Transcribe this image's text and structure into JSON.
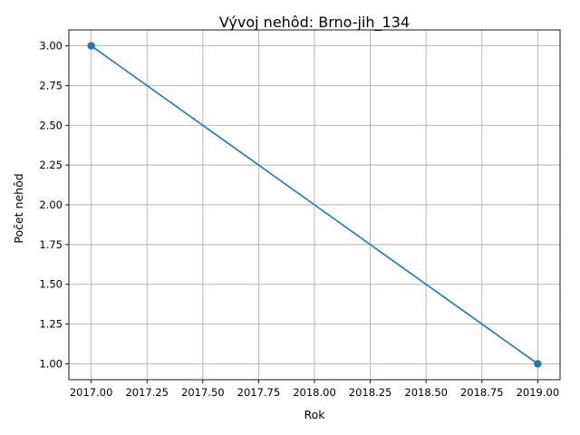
{
  "chart_data": {
    "type": "line",
    "title": "Vývoj nehôd: Brno-jih_134",
    "xlabel": "Rok",
    "ylabel": "Počet nehôd",
    "xlim": [
      2016.9,
      2019.1
    ],
    "ylim": [
      0.9,
      3.1
    ],
    "xticks": [
      2017.0,
      2017.25,
      2017.5,
      2017.75,
      2018.0,
      2018.25,
      2018.5,
      2018.75,
      2019.0
    ],
    "xtick_labels": [
      "2017.00",
      "2017.25",
      "2017.50",
      "2017.75",
      "2018.00",
      "2018.25",
      "2018.50",
      "2018.75",
      "2019.00"
    ],
    "yticks": [
      1.0,
      1.25,
      1.5,
      1.75,
      2.0,
      2.25,
      2.5,
      2.75,
      3.0
    ],
    "ytick_labels": [
      "1.00",
      "1.25",
      "1.50",
      "1.75",
      "2.00",
      "2.25",
      "2.50",
      "2.75",
      "3.00"
    ],
    "grid": true,
    "series": [
      {
        "x": [
          2017,
          2019
        ],
        "y": [
          3,
          1
        ],
        "color": "#1f77b4",
        "marker": "circle"
      }
    ]
  }
}
